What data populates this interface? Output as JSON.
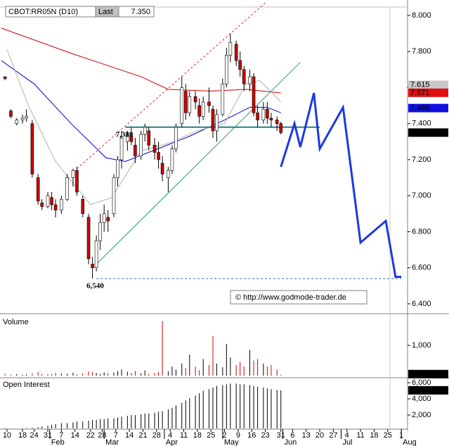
{
  "chart_data": [
    {
      "type": "candlestick",
      "symbol": "CBOT:RR05N (D10)",
      "last_caption": "Last",
      "copyright": "© http://www.godmode-trader.de",
      "xlim": [
        -3.6,
        206.2
      ],
      "ylim": [
        6.345,
        8.07
      ],
      "yticks": [
        {
          "value": 8.0,
          "label": "8.000"
        },
        {
          "value": 7.8,
          "label": "7.800"
        },
        {
          "value": 7.6,
          "label": "7.600"
        },
        {
          "value": 7.4,
          "label": "7.400"
        },
        {
          "value": 7.2,
          "label": "7.200"
        },
        {
          "value": 7.0,
          "label": "7.000"
        },
        {
          "value": 6.8,
          "label": "6.800"
        },
        {
          "value": 6.6,
          "label": "6.600"
        },
        {
          "value": 6.4,
          "label": "6.400"
        }
      ],
      "xticks": [
        {
          "value": 0,
          "label": "10"
        },
        {
          "value": 8,
          "label": "18"
        },
        {
          "value": 14,
          "label": "24"
        },
        {
          "value": 21,
          "label": "31"
        },
        {
          "value": 28,
          "label": "7"
        },
        {
          "value": 35,
          "label": "14"
        },
        {
          "value": 43,
          "label": "22"
        },
        {
          "value": 49,
          "label": "28"
        },
        {
          "value": 56,
          "label": "7"
        },
        {
          "value": 63,
          "label": "14"
        },
        {
          "value": 70,
          "label": "21"
        },
        {
          "value": 77,
          "label": "28"
        },
        {
          "value": 84,
          "label": "4"
        },
        {
          "value": 91,
          "label": "11"
        },
        {
          "value": 98,
          "label": "18"
        },
        {
          "value": 105,
          "label": "25"
        },
        {
          "value": 112,
          "label": "2"
        },
        {
          "value": 119,
          "label": "9"
        },
        {
          "value": 126,
          "label": "16"
        },
        {
          "value": 133,
          "label": "23"
        },
        {
          "value": 141,
          "label": "31"
        },
        {
          "value": 147,
          "label": "6"
        },
        {
          "value": 154,
          "label": "13"
        },
        {
          "value": 161,
          "label": "20"
        },
        {
          "value": 168,
          "label": "27"
        },
        {
          "value": 175,
          "label": "4"
        },
        {
          "value": 182,
          "label": "11"
        },
        {
          "value": 189,
          "label": "18"
        },
        {
          "value": 196,
          "label": "25"
        },
        {
          "value": 203,
          "label": "1"
        }
      ],
      "month_ticks": [
        {
          "value": 22,
          "label": "Feb"
        },
        {
          "value": 50,
          "label": "Mar"
        },
        {
          "value": 81,
          "label": "Apr"
        },
        {
          "value": 111,
          "label": "May"
        },
        {
          "value": 142,
          "label": "Jun"
        },
        {
          "value": 172,
          "label": "Jul"
        },
        {
          "value": 203,
          "label": "Aug"
        }
      ],
      "up_color": "#ffffff",
      "down_color": "#cc0000",
      "x": [
        -1,
        2,
        5,
        8,
        10,
        13,
        16,
        18,
        21,
        23,
        25,
        28,
        31,
        34,
        36,
        39,
        42,
        44,
        46,
        48,
        50,
        52,
        55,
        57,
        59,
        62,
        64,
        66,
        69,
        71,
        73,
        76,
        78,
        80,
        83,
        85,
        87,
        90,
        92,
        94,
        97,
        99,
        101,
        104,
        106,
        108,
        111,
        113,
        115,
        118,
        120,
        122,
        125,
        127,
        129,
        132,
        134,
        136,
        139,
        141
      ],
      "open": [
        7.66,
        7.47,
        7.4,
        7.42,
        7.43,
        7.4,
        7.1,
        6.96,
        6.94,
        6.99,
        6.95,
        6.92,
        6.98,
        7.1,
        7.14,
        6.98,
        6.88,
        6.62,
        6.6,
        6.75,
        6.85,
        6.88,
        6.9,
        7.1,
        7.2,
        7.3,
        7.33,
        7.28,
        7.22,
        7.34,
        7.36,
        7.28,
        7.24,
        7.18,
        7.1,
        7.14,
        7.26,
        7.4,
        7.58,
        7.46,
        7.55,
        7.5,
        7.44,
        7.52,
        7.48,
        7.36,
        7.45,
        7.62,
        7.78,
        7.84,
        7.75,
        7.7,
        7.62,
        7.66,
        7.46,
        7.42,
        7.48,
        7.43,
        7.42,
        7.4
      ],
      "high": [
        7.66,
        7.48,
        7.43,
        7.45,
        7.48,
        7.42,
        7.12,
        6.98,
        7.02,
        7.02,
        6.98,
        7.0,
        7.12,
        7.15,
        7.16,
        7.0,
        6.9,
        6.66,
        6.78,
        6.9,
        6.95,
        6.92,
        7.12,
        7.22,
        7.36,
        7.36,
        7.38,
        7.32,
        7.36,
        7.4,
        7.38,
        7.32,
        7.3,
        7.22,
        7.16,
        7.28,
        7.4,
        7.66,
        7.62,
        7.58,
        7.58,
        7.54,
        7.55,
        7.6,
        7.5,
        7.48,
        7.65,
        7.82,
        7.9,
        7.86,
        7.8,
        7.72,
        7.7,
        7.68,
        7.5,
        7.52,
        7.52,
        7.46,
        7.44,
        7.41
      ],
      "low": [
        7.64,
        7.43,
        7.39,
        7.4,
        7.41,
        7.1,
        6.95,
        6.92,
        6.93,
        6.92,
        6.88,
        6.9,
        6.97,
        7.05,
        7.0,
        6.88,
        6.62,
        6.54,
        6.58,
        6.7,
        6.8,
        6.8,
        6.88,
        7.05,
        7.15,
        7.25,
        7.28,
        7.18,
        7.2,
        7.3,
        7.25,
        7.2,
        7.15,
        7.08,
        7.02,
        7.12,
        7.24,
        7.38,
        7.42,
        7.44,
        7.48,
        7.4,
        7.42,
        7.46,
        7.32,
        7.3,
        7.44,
        7.6,
        7.74,
        7.72,
        7.66,
        7.58,
        7.58,
        7.44,
        7.38,
        7.4,
        7.4,
        7.38,
        7.36,
        7.34
      ],
      "close": [
        7.65,
        7.44,
        7.42,
        7.43,
        7.44,
        7.12,
        6.97,
        6.94,
        7.0,
        6.95,
        6.92,
        6.98,
        7.1,
        7.14,
        7.02,
        6.9,
        6.65,
        6.6,
        6.75,
        6.85,
        6.9,
        6.86,
        7.1,
        7.2,
        7.32,
        7.33,
        7.3,
        7.22,
        7.34,
        7.38,
        7.28,
        7.24,
        7.2,
        7.12,
        7.14,
        7.26,
        7.38,
        7.6,
        7.46,
        7.55,
        7.52,
        7.44,
        7.52,
        7.5,
        7.36,
        7.45,
        7.62,
        7.78,
        7.85,
        7.75,
        7.7,
        7.62,
        7.66,
        7.46,
        7.42,
        7.48,
        7.43,
        7.42,
        7.4,
        7.35
      ],
      "lines": [
        {
          "color": "#cc0000",
          "width": 1,
          "x": [
            -3,
            33,
            69,
            83,
            105,
            123,
            141
          ],
          "values": [
            7.93,
            7.79,
            7.66,
            7.59,
            7.58,
            7.59,
            7.57
          ]
        },
        {
          "color": "#0000cc",
          "width": 1,
          "x": [
            -3,
            14,
            33,
            51,
            61,
            80,
            94,
            112,
            125,
            134,
            141
          ],
          "values": [
            7.75,
            7.62,
            7.4,
            7.21,
            7.19,
            7.27,
            7.33,
            7.42,
            7.49,
            7.49,
            7.46
          ]
        },
        {
          "color": "#b0b0b0",
          "width": 1,
          "x": [
            0,
            11,
            25,
            43,
            54,
            69,
            83,
            98,
            112,
            123,
            130,
            141
          ],
          "values": [
            7.81,
            7.5,
            7.19,
            6.95,
            6.99,
            7.25,
            7.29,
            7.36,
            7.4,
            7.62,
            7.64,
            7.52
          ]
        },
        {
          "color": "#dd2222",
          "width": 1,
          "dash": true,
          "x": [
            36,
            133
          ],
          "values": [
            7.15,
            8.07
          ]
        },
        {
          "color": "#2a9a80",
          "width": 1,
          "x": [
            46,
            151
          ],
          "values": [
            6.62,
            7.74
          ]
        },
        {
          "color": "#2a8080",
          "width": 2,
          "x": [
            61,
            161
          ],
          "values": [
            7.38,
            7.38
          ],
          "label": "7,380"
        },
        {
          "color": "#2a6ad0",
          "width": 1,
          "dash": true,
          "x": [
            46,
            203
          ],
          "values": [
            6.54,
            6.54
          ],
          "label": "6,540"
        },
        {
          "color": "#1a3ae0",
          "width": 3,
          "x": [
            141,
            148,
            151,
            158,
            161,
            173,
            182,
            195,
            200,
            203
          ],
          "values": [
            7.16,
            7.4,
            7.27,
            7.57,
            7.26,
            7.49,
            6.74,
            6.86,
            6.55,
            6.55
          ]
        }
      ],
      "price_markers": [
        {
          "value": 7.615,
          "label": "7.615",
          "color": "#c8c8c8"
        },
        {
          "value": 7.571,
          "label": "7.571",
          "color": "#e01010"
        },
        {
          "value": 7.486,
          "label": "7.486",
          "color": "#1010e0"
        },
        {
          "value": 7.35,
          "label": "7.350",
          "color": "#000000"
        }
      ]
    },
    {
      "type": "bar",
      "title": "Volume",
      "ylim": [
        0,
        2000
      ],
      "yticks": [
        {
          "value": 1000,
          "label": "1,000"
        }
      ],
      "values": [
        60,
        40,
        50,
        30,
        40,
        80,
        120,
        60,
        40,
        50,
        90,
        70,
        60,
        100,
        50,
        80,
        140,
        120,
        90,
        60,
        110,
        80,
        100,
        150,
        200,
        130,
        90,
        160,
        80,
        170,
        60,
        90,
        120,
        1800,
        140,
        300,
        200,
        400,
        250,
        700,
        300,
        180,
        550,
        350,
        1300,
        400,
        280,
        1050,
        600,
        350,
        450,
        300,
        850,
        500,
        550,
        400,
        300,
        350,
        200,
        28
      ]
    },
    {
      "type": "bar",
      "title": "Open Interest",
      "ylim": [
        350,
        6350
      ],
      "yticks": [
        {
          "value": 6000,
          "label": "6,000"
        },
        {
          "value": 4000,
          "label": "4,000"
        },
        {
          "value": 2000,
          "label": "2,000"
        }
      ],
      "last_label": "5,059",
      "values": [
        300,
        320,
        350,
        380,
        400,
        450,
        500,
        600,
        700,
        800,
        900,
        1000,
        1000,
        1100,
        1200,
        1200,
        1300,
        1400,
        1400,
        1500,
        1500,
        1600,
        1600,
        1700,
        1800,
        1900,
        2000,
        2000,
        2100,
        2200,
        2200,
        2300,
        2400,
        2500,
        2700,
        2900,
        3200,
        3500,
        3800,
        4100,
        4400,
        4700,
        5000,
        5200,
        5400,
        5600,
        5700,
        5800,
        5900,
        5900,
        5800,
        5800,
        5700,
        5600,
        5500,
        5400,
        5300,
        5200,
        5100,
        5059
      ]
    }
  ]
}
